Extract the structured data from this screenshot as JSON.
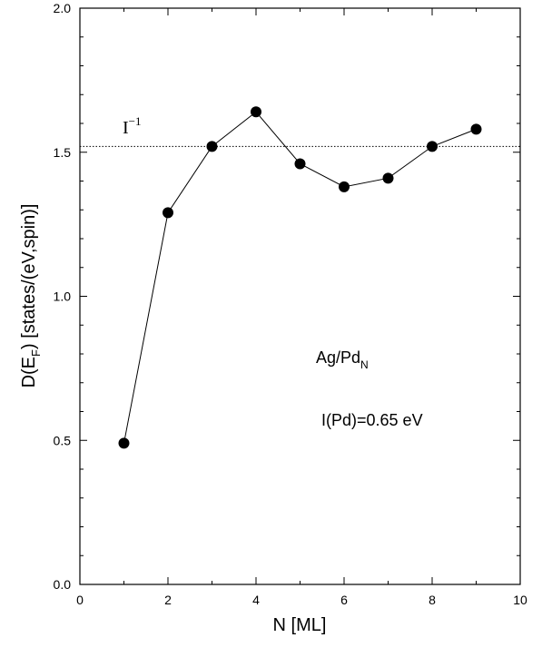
{
  "chart_data": {
    "type": "line",
    "xlabel": "N [ML]",
    "ylabel_parts": {
      "main": "D(E",
      "sub": "F",
      "tail": ") [states/(eV,spin)]"
    },
    "xlim": [
      0,
      10
    ],
    "ylim": [
      0.0,
      2.0
    ],
    "x_ticks": [
      "0",
      "2",
      "4",
      "6",
      "8",
      "10"
    ],
    "y_ticks": [
      "0.0",
      "0.5",
      "1.0",
      "1.5",
      "2.0"
    ],
    "x_tick_values": [
      0,
      2,
      4,
      6,
      8,
      10
    ],
    "y_tick_values": [
      0.0,
      0.5,
      1.0,
      1.5,
      2.0
    ],
    "grid": false,
    "series": [
      {
        "x": [
          1,
          2,
          3,
          4,
          5,
          6,
          7,
          8,
          9
        ],
        "y": [
          0.49,
          1.29,
          1.52,
          1.64,
          1.46,
          1.38,
          1.41,
          1.52,
          1.58
        ]
      }
    ],
    "reference_line": {
      "y": 1.52,
      "label_main": "I",
      "label_sup": "−1",
      "style": "dotted"
    },
    "annotations": {
      "system_main": "Ag/Pd",
      "system_sub": "N",
      "param": "I(Pd)=0.65 eV"
    }
  }
}
